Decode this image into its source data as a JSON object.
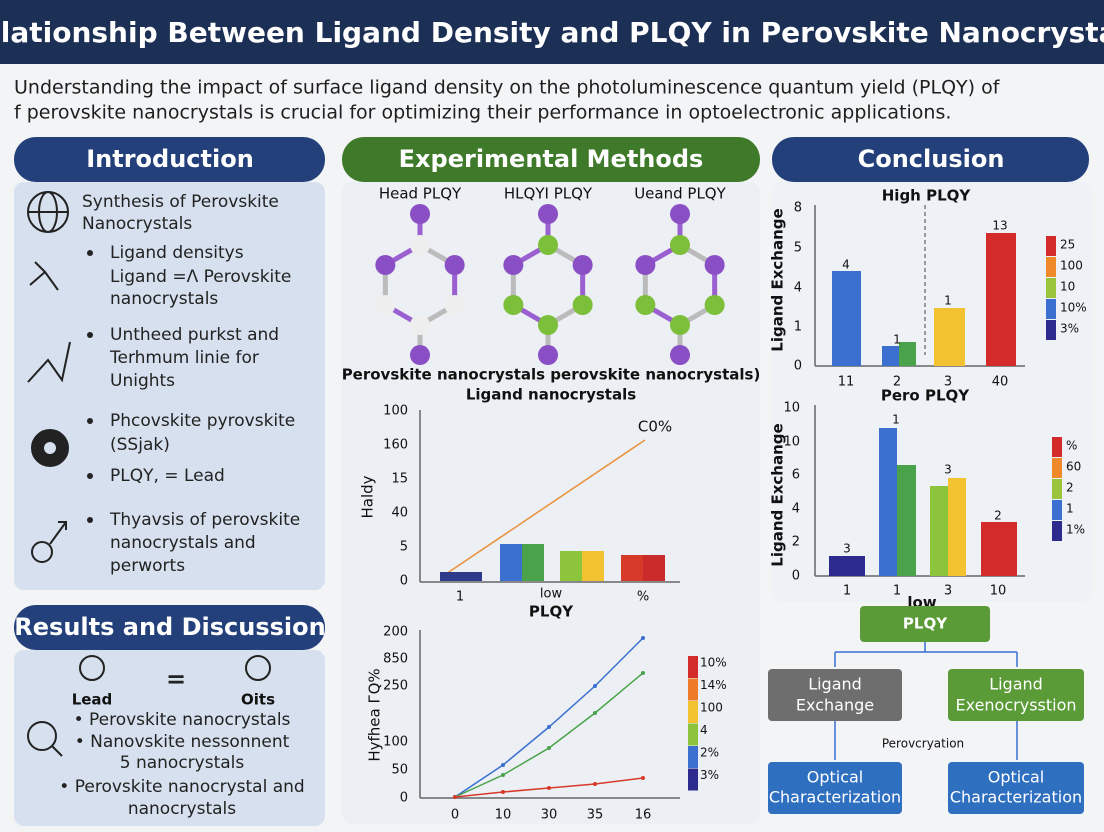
{
  "header": {
    "title": "Relationship Between Ligand Density and PLQY in Perovskite Nanocrystals"
  },
  "intro_text": [
    "Understanding the impact of surface ligand density on the photoluminescence quantum yield (PLQY) of",
    "f perovskite nanocrystals is crucial for optimizing their performance in optoelectronic applications."
  ],
  "introduction": {
    "title": "Introduction",
    "lines": [
      "Synthesis of Perovskite",
      "Nanocrystals",
      "Ligand densitys",
      "Ligand =Λ Perovskite",
      "nanocrystals",
      "Untheed purkst and",
      "Terhmum linie for",
      "Unights",
      "Phcovskite pyrovskite",
      "(SSjak)",
      "PLQY, = Lead",
      "Thyavsis of perovskite",
      "nanocrystals and",
      "perworts"
    ]
  },
  "results": {
    "title": "Results and Discussion",
    "left_icon": "Lead",
    "equals": "=",
    "right_icon": "Oits",
    "lines": [
      "• Perovskite nanocrystals",
      "• Nanovskite nessonnent",
      "5 nanocrystals",
      "• Perovskite nanocrystal and",
      "nanocrystals"
    ]
  },
  "methods": {
    "title": "Experimental Methods",
    "molecules": [
      "Head PLQY",
      "HLQYI PLQY",
      "Ueand PLQY"
    ],
    "captions": [
      "Perovskite nanocrystals perovskite nanocrystals)",
      "Ligand nanocrystals"
    ],
    "bar_chart": {
      "y_labels": [
        "100",
        "160",
        "15",
        "40",
        "5",
        "0"
      ],
      "y_title": "Haldy",
      "annotation": "C0%",
      "x_labels": [
        "1",
        "low",
        "%"
      ],
      "x_title": "PLQY"
    },
    "line_chart": {
      "y_labels": [
        "200",
        "850",
        "250",
        "100",
        "50",
        "0"
      ],
      "y_title": "Hyfhea ГQ%",
      "x_labels": [
        "0",
        "10",
        "30",
        "35",
        "16"
      ],
      "legend": [
        "10%",
        "14%",
        "100",
        "4",
        "2%",
        "3%"
      ]
    }
  },
  "conclusion": {
    "title": "Conclusion",
    "chart_a": {
      "title": "High PLQY",
      "y_title": "Ligand Exchange",
      "y_labels": [
        "8",
        "5",
        "4",
        "1",
        "0"
      ],
      "x_labels": [
        "11",
        "2",
        "3",
        "40"
      ],
      "bar_labels": [
        "4",
        "1",
        "1",
        "13"
      ],
      "x_title": "Pero PLQY",
      "legend": [
        "25",
        "100",
        "10",
        "10%",
        "3%"
      ]
    },
    "chart_b": {
      "y_title": "Ligand Exchange",
      "y_labels": [
        "10",
        "10",
        "6",
        "4",
        "2",
        "0"
      ],
      "x_labels": [
        "1",
        "1",
        "3",
        "10"
      ],
      "bar_labels": [
        "3",
        "1",
        "3",
        "2"
      ],
      "x_title": "low",
      "legend": [
        "%",
        "60",
        "2",
        "1",
        "1%"
      ]
    },
    "flow": {
      "top": "PLQY",
      "left": [
        "Ligand",
        "Exchange"
      ],
      "right": [
        "Ligand",
        "Exenocrysstion"
      ],
      "middle": "Perovcryation",
      "bottom_left": [
        "Optical",
        "Characterization"
      ],
      "bottom_right": [
        "Optical",
        "Characterization"
      ]
    }
  }
}
